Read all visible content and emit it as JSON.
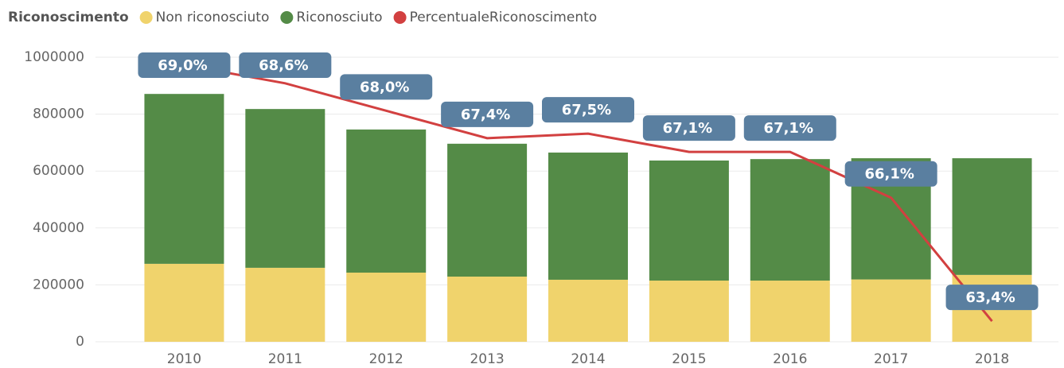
{
  "chart_data": {
    "type": "bar",
    "stacked": true,
    "legend_title": "Riconoscimento",
    "categories": [
      "2010",
      "2011",
      "2012",
      "2013",
      "2014",
      "2015",
      "2016",
      "2017",
      "2018"
    ],
    "series": [
      {
        "name": "Non riconosciuto",
        "color": "#f0d36c",
        "values": [
          274000,
          260000,
          243000,
          229000,
          218000,
          215000,
          215000,
          219000,
          235000
        ]
      },
      {
        "name": "Riconosciuto",
        "color": "#548b47",
        "values": [
          597000,
          558000,
          503000,
          467000,
          447000,
          422000,
          427000,
          426000,
          410000
        ]
      },
      {
        "name": "PercentualeRiconoscimento",
        "color": "#d24040",
        "type": "line",
        "axis": "y2",
        "values": [
          69.0,
          68.6,
          68.0,
          67.4,
          67.5,
          67.1,
          67.1,
          66.1,
          63.4
        ],
        "value_labels": [
          "69,0%",
          "68,6%",
          "68,0%",
          "67,4%",
          "67,5%",
          "67,1%",
          "67,1%",
          "66,1%",
          "63,4%"
        ]
      }
    ],
    "ylim": [
      0,
      1000000
    ],
    "yticks": [
      0,
      200000,
      400000,
      600000,
      800000,
      1000000
    ],
    "y2lim": [
      62.95,
      69.17
    ],
    "grid": true,
    "legend": "top-left"
  }
}
